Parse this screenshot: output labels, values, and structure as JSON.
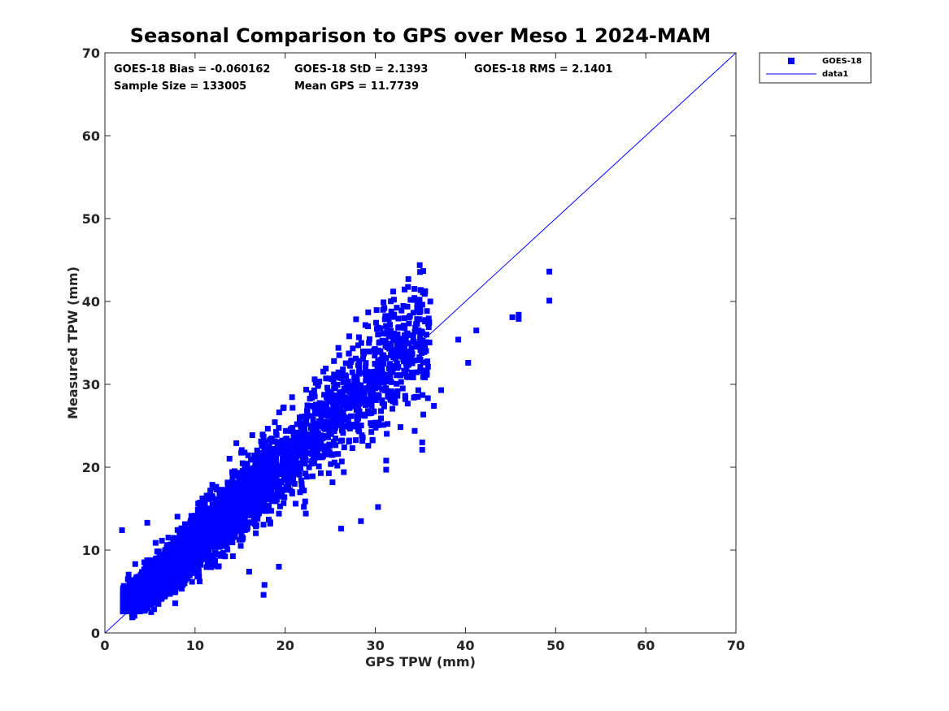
{
  "chart_data": {
    "type": "scatter",
    "title": "Seasonal Comparison to GPS over Meso 1 2024-MAM",
    "xlabel": "GPS TPW (mm)",
    "ylabel": "Measured TPW (mm)",
    "xlim": [
      0,
      70
    ],
    "ylim": [
      0,
      70
    ],
    "xticks": [
      0,
      10,
      20,
      30,
      40,
      50,
      60,
      70
    ],
    "yticks": [
      0,
      10,
      20,
      30,
      40,
      50,
      60,
      70
    ],
    "grid": false,
    "legend_position": "outside-top-right",
    "series_color": "#0000ff",
    "series": [
      {
        "name": "GOES-18",
        "style": "square-marker",
        "note": "133005 samples; dense cluster approx. along y = x, plus visible outliers listed",
        "cluster": [
          {
            "x": 2,
            "y": 4
          },
          {
            "x": 3,
            "y": 3
          },
          {
            "x": 4,
            "y": 6
          },
          {
            "x": 5,
            "y": 5
          },
          {
            "x": 6,
            "y": 8
          },
          {
            "x": 7,
            "y": 6
          },
          {
            "x": 8,
            "y": 10
          },
          {
            "x": 9,
            "y": 8
          },
          {
            "x": 10,
            "y": 12
          },
          {
            "x": 11,
            "y": 10
          },
          {
            "x": 12,
            "y": 14
          },
          {
            "x": 13,
            "y": 12
          },
          {
            "x": 14,
            "y": 16
          },
          {
            "x": 15,
            "y": 14
          },
          {
            "x": 16,
            "y": 18
          },
          {
            "x": 17,
            "y": 16
          },
          {
            "x": 18,
            "y": 20
          },
          {
            "x": 19,
            "y": 18
          },
          {
            "x": 20,
            "y": 22
          },
          {
            "x": 21,
            "y": 20
          },
          {
            "x": 22,
            "y": 24
          },
          {
            "x": 23,
            "y": 22
          },
          {
            "x": 24,
            "y": 26
          },
          {
            "x": 25,
            "y": 24
          },
          {
            "x": 26,
            "y": 28
          },
          {
            "x": 27,
            "y": 26
          },
          {
            "x": 28,
            "y": 30
          },
          {
            "x": 30,
            "y": 30
          },
          {
            "x": 32,
            "y": 32
          },
          {
            "x": 34,
            "y": 34
          },
          {
            "x": 35,
            "y": 33
          }
        ],
        "outliers": [
          {
            "x": 1.9,
            "y": 12.4
          },
          {
            "x": 4.7,
            "y": 13.3
          },
          {
            "x": 17.6,
            "y": 4.6
          },
          {
            "x": 17.7,
            "y": 5.8
          },
          {
            "x": 19.3,
            "y": 8.0
          },
          {
            "x": 16.0,
            "y": 7.4
          },
          {
            "x": 26.2,
            "y": 12.6
          },
          {
            "x": 28.4,
            "y": 13.5
          },
          {
            "x": 30.3,
            "y": 15.2
          },
          {
            "x": 31.2,
            "y": 19.7
          },
          {
            "x": 31.2,
            "y": 20.8
          },
          {
            "x": 35.2,
            "y": 22.1
          },
          {
            "x": 35.2,
            "y": 23.0
          },
          {
            "x": 36.5,
            "y": 27.4
          },
          {
            "x": 37.3,
            "y": 29.3
          },
          {
            "x": 39.2,
            "y": 35.4
          },
          {
            "x": 40.3,
            "y": 32.6
          },
          {
            "x": 41.2,
            "y": 36.5
          },
          {
            "x": 45.2,
            "y": 38.1
          },
          {
            "x": 45.9,
            "y": 38.4
          },
          {
            "x": 45.9,
            "y": 37.9
          },
          {
            "x": 49.3,
            "y": 43.6
          },
          {
            "x": 49.3,
            "y": 40.1
          },
          {
            "x": 33.9,
            "y": 40.2
          },
          {
            "x": 36.1,
            "y": 40.0
          },
          {
            "x": 31.0,
            "y": 39.2
          },
          {
            "x": 27.1,
            "y": 35.8
          },
          {
            "x": 25.9,
            "y": 34.4
          },
          {
            "x": 21.6,
            "y": 26.0
          }
        ]
      },
      {
        "name": "data1",
        "style": "line",
        "x": [
          0,
          70
        ],
        "y": [
          0,
          70
        ]
      }
    ],
    "annotations": [
      "GOES-18 Bias = -0.060162",
      "GOES-18 StD = 2.1393",
      "GOES-18 RMS = 2.1401",
      "Sample Size = 133005",
      "Mean GPS = 11.7739"
    ]
  }
}
